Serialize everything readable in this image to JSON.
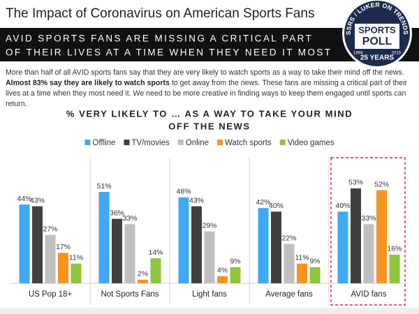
{
  "header": {
    "title": "The Impact of Coronavirus on American Sports Fans",
    "banner": [
      "AVID SPORTS FANS ARE MISSING A CRITICAL PART",
      "OF THEIR LIVES AT A TIME WHEN THEY NEED IT MOST"
    ]
  },
  "logo": {
    "ring": "SSRS / LUKER ON TRENDS",
    "top": "SPORTS",
    "bottom": "POLL",
    "start": "1994",
    "end": "2019",
    "years": "25 YEARS"
  },
  "intro": [
    "More than half of all AVID sports fans say that they are very likely to watch sports as a way to take their mind off the news. ",
    "Almost 83% say they are likely to watch sports",
    " to get away from the news. These fans are missing a critical part of their lives at a time when they most need it. We need to be more creative in finding ways to keep them engaged until sports can return."
  ],
  "chart_data": {
    "type": "bar",
    "title": [
      "% VERY LIKELY TO … AS A WAY TO TAKE YOUR MIND",
      "OFF THE NEWS"
    ],
    "categories": [
      "US Pop 18+",
      "Not Sports Fans",
      "Light fans",
      "Average fans",
      "AVID fans"
    ],
    "series": [
      {
        "name": "Offline",
        "color": "#3fa9f5",
        "values": [
          44,
          51,
          48,
          42,
          40
        ],
        "value_labels": [
          "44%",
          "51%",
          "48%",
          "42%",
          "40%"
        ]
      },
      {
        "name": "TV/movies",
        "color": "#404040",
        "values": [
          43,
          36,
          43,
          40,
          53
        ],
        "value_labels": [
          "43%",
          "36%",
          "43%",
          "40%",
          "53%"
        ]
      },
      {
        "name": "Online",
        "color": "#bfbfbf",
        "values": [
          27,
          33,
          29,
          22,
          33
        ],
        "value_labels": [
          "27%",
          "33%",
          "29%",
          "22%",
          "33%"
        ]
      },
      {
        "name": "Watch sports",
        "color": "#f7941d",
        "values": [
          17,
          2,
          4,
          11,
          52
        ],
        "value_labels": [
          "17%",
          "2%",
          "4%",
          "11%",
          "52%"
        ]
      },
      {
        "name": "Video games",
        "color": "#8dc63f",
        "values": [
          11,
          14,
          9,
          9,
          16
        ],
        "value_labels": [
          "11%",
          "14%",
          "9%",
          "9%",
          "16%"
        ]
      }
    ],
    "ylim": [
      0,
      60
    ],
    "legend": "top"
  }
}
